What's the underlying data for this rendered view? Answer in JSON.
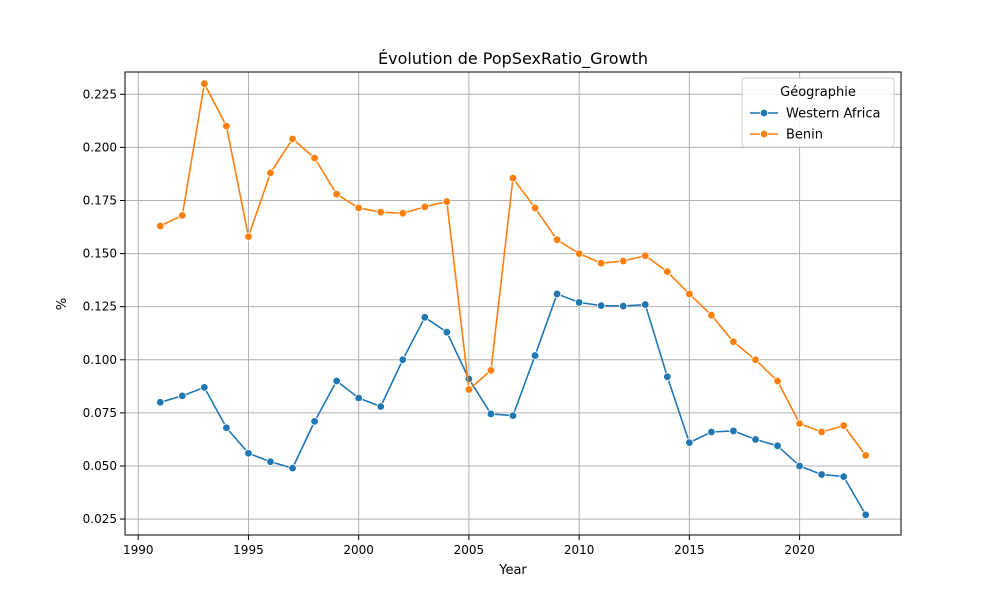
{
  "chart_data": {
    "type": "line",
    "title": "Évolution de PopSexRatio_Growth",
    "xlabel": "Year",
    "ylabel": "%",
    "xlim": [
      1989.4,
      2024.6
    ],
    "ylim": [
      0.0175,
      0.2355
    ],
    "xticks": [
      1990,
      1995,
      2000,
      2005,
      2010,
      2015,
      2020
    ],
    "yticks": [
      0.025,
      0.05,
      0.075,
      0.1,
      0.125,
      0.15,
      0.175,
      0.2,
      0.225
    ],
    "ytick_labels": [
      "0.025",
      "0.050",
      "0.075",
      "0.100",
      "0.125",
      "0.150",
      "0.175",
      "0.200",
      "0.225"
    ],
    "grid": true,
    "legend": {
      "title": "Géographie",
      "position": "upper right"
    },
    "x": [
      1991,
      1992,
      1993,
      1994,
      1995,
      1996,
      1997,
      1998,
      1999,
      2000,
      2001,
      2002,
      2003,
      2004,
      2005,
      2006,
      2007,
      2008,
      2009,
      2010,
      2011,
      2012,
      2013,
      2014,
      2015,
      2016,
      2017,
      2018,
      2019,
      2020,
      2021,
      2022,
      2023
    ],
    "series": [
      {
        "name": "Western Africa",
        "color": "#1f77b4",
        "values": [
          0.08,
          0.083,
          0.087,
          0.068,
          0.056,
          0.052,
          0.049,
          0.071,
          0.09,
          0.082,
          0.078,
          0.1,
          0.12,
          0.113,
          0.091,
          0.0745,
          0.0737,
          0.102,
          0.131,
          0.127,
          0.1255,
          0.1253,
          0.126,
          0.092,
          0.061,
          0.066,
          0.0665,
          0.0625,
          0.0595,
          0.05,
          0.046,
          0.045,
          0.027
        ]
      },
      {
        "name": "Benin",
        "color": "#ff7f0e",
        "values": [
          0.163,
          0.168,
          0.23,
          0.21,
          0.158,
          0.188,
          0.204,
          0.195,
          0.178,
          0.1715,
          0.1695,
          0.169,
          0.172,
          0.1745,
          0.086,
          0.095,
          0.1855,
          0.1715,
          0.1565,
          0.15,
          0.1455,
          0.1465,
          0.149,
          0.1415,
          0.131,
          0.121,
          0.1085,
          0.1,
          0.09,
          0.07,
          0.066,
          0.069,
          0.055
        ]
      }
    ]
  }
}
